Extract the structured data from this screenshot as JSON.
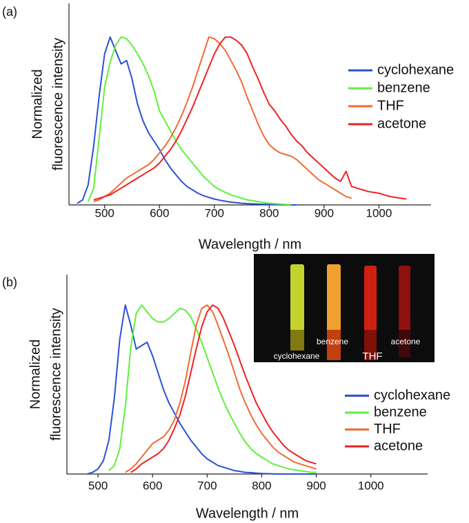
{
  "chart_data": [
    {
      "type": "line",
      "panel_label": "(a)",
      "x_label": "Wavelength / nm",
      "y_label": [
        "Normalized",
        "fluorescence intensity"
      ],
      "x": [
        450,
        460,
        470,
        480,
        490,
        500,
        510,
        520,
        530,
        540,
        550,
        560,
        570,
        580,
        590,
        600,
        610,
        620,
        630,
        640,
        650,
        660,
        670,
        680,
        690,
        700,
        710,
        720,
        730,
        740,
        750,
        760,
        770,
        780,
        790,
        800,
        810,
        820,
        830,
        840,
        850,
        860,
        870,
        880,
        890,
        900,
        910,
        920,
        930,
        940,
        950,
        960,
        970,
        980,
        990,
        1000,
        1010,
        1020,
        1030,
        1040,
        1050
      ],
      "series": [
        {
          "name": "cyclohexane",
          "color": "#2a4fd8",
          "values": [
            0.01,
            0.03,
            0.12,
            0.35,
            0.65,
            0.9,
            1.0,
            0.92,
            0.84,
            0.86,
            0.75,
            0.6,
            0.5,
            0.43,
            0.38,
            0.33,
            0.27,
            0.22,
            0.18,
            0.14,
            0.11,
            0.09,
            0.07,
            0.055,
            0.045,
            0.035,
            0.028,
            0.022,
            0.017,
            0.013,
            0.01,
            0.008,
            0.006,
            0.005,
            0.004,
            0.003,
            0.002,
            0.001,
            0.001,
            0,
            0,
            null,
            null,
            null,
            null,
            null,
            null,
            null,
            null,
            null,
            null,
            null,
            null,
            null,
            null,
            null,
            null,
            null,
            null,
            null,
            null
          ]
        },
        {
          "name": "benzene",
          "color": "#5ef03a",
          "values": [
            null,
            null,
            0.02,
            0.1,
            0.4,
            0.7,
            0.85,
            0.95,
            1.0,
            0.99,
            0.95,
            0.9,
            0.84,
            0.77,
            0.68,
            0.56,
            0.5,
            0.44,
            0.38,
            0.33,
            0.29,
            0.25,
            0.21,
            0.17,
            0.14,
            0.11,
            0.09,
            0.075,
            0.06,
            0.05,
            0.04,
            0.03,
            0.025,
            0.02,
            0.015,
            0.01,
            0.008,
            0.005,
            0.003,
            0.002,
            null,
            null,
            null,
            null,
            null,
            null,
            null,
            null,
            null,
            null,
            null,
            null,
            null,
            null,
            null,
            null,
            null,
            null,
            null,
            null,
            null
          ]
        },
        {
          "name": "THF",
          "color": "#f06a30",
          "values": [
            null,
            null,
            null,
            0.02,
            0.03,
            0.05,
            0.07,
            0.1,
            0.13,
            0.16,
            0.18,
            0.2,
            0.22,
            0.24,
            0.27,
            0.31,
            0.35,
            0.4,
            0.46,
            0.53,
            0.61,
            0.7,
            0.8,
            0.9,
            1.0,
            0.99,
            0.96,
            0.92,
            0.86,
            0.8,
            0.73,
            0.64,
            0.56,
            0.48,
            0.41,
            0.36,
            0.33,
            0.31,
            0.3,
            0.29,
            0.27,
            0.24,
            0.21,
            0.18,
            0.15,
            0.13,
            0.11,
            0.09,
            0.07,
            0.05,
            0.04,
            null,
            null,
            null,
            null,
            null,
            null,
            null,
            null,
            null,
            null
          ]
        },
        {
          "name": "acetone",
          "color": "#f02020",
          "values": [
            null,
            null,
            null,
            0.03,
            0.04,
            0.05,
            0.06,
            0.08,
            0.1,
            0.12,
            0.14,
            0.16,
            0.18,
            0.2,
            0.22,
            0.25,
            0.29,
            0.33,
            0.38,
            0.44,
            0.51,
            0.58,
            0.66,
            0.74,
            0.82,
            0.9,
            0.96,
            1.0,
            1.0,
            0.98,
            0.95,
            0.9,
            0.82,
            0.75,
            0.67,
            0.6,
            0.56,
            0.51,
            0.47,
            0.42,
            0.38,
            0.35,
            0.31,
            0.28,
            0.25,
            0.22,
            0.19,
            0.16,
            0.14,
            0.2,
            0.11,
            0.1,
            0.09,
            0.08,
            0.075,
            0.07,
            0.06,
            0.05,
            0.045,
            0.04,
            0.035
          ]
        }
      ],
      "xlim": [
        435,
        1095
      ],
      "ylim": [
        0,
        1.2
      ],
      "xticks": [
        500,
        600,
        700,
        800,
        900,
        1000
      ],
      "grid": false,
      "legend": "center right"
    },
    {
      "type": "line",
      "panel_label": "(b)",
      "x_label": "Wavelength / nm",
      "y_label": [
        "Normalized",
        "fluorescence intensity"
      ],
      "x": [
        480,
        490,
        500,
        510,
        520,
        530,
        540,
        550,
        560,
        570,
        580,
        590,
        600,
        610,
        620,
        630,
        640,
        650,
        660,
        670,
        680,
        690,
        700,
        710,
        720,
        730,
        740,
        750,
        760,
        770,
        780,
        790,
        800,
        810,
        820,
        830,
        840,
        850,
        860,
        870,
        880,
        890,
        900
      ],
      "series": [
        {
          "name": "cyclohexane",
          "color": "#2a4fd8",
          "values": [
            0,
            0.01,
            0.03,
            0.08,
            0.2,
            0.45,
            0.8,
            1.0,
            0.88,
            0.74,
            0.76,
            0.78,
            0.7,
            0.6,
            0.5,
            0.42,
            0.36,
            0.3,
            0.25,
            0.2,
            0.16,
            0.12,
            0.09,
            0.07,
            0.05,
            0.04,
            0.03,
            0.02,
            0.015,
            0.01,
            0.008,
            0.005,
            0.003,
            0.002,
            0.001,
            0,
            0,
            0,
            0,
            0,
            0,
            0,
            0
          ]
        },
        {
          "name": "benzene",
          "color": "#5ef03a",
          "values": [
            null,
            null,
            null,
            null,
            0.02,
            0.05,
            0.15,
            0.4,
            0.75,
            0.95,
            1.0,
            0.96,
            0.92,
            0.9,
            0.9,
            0.92,
            0.95,
            0.98,
            0.97,
            0.93,
            0.86,
            0.78,
            0.69,
            0.6,
            0.51,
            0.43,
            0.36,
            0.3,
            0.24,
            0.19,
            0.15,
            0.12,
            0.1,
            0.08,
            0.06,
            0.05,
            0.04,
            0.03,
            0.025,
            0.02,
            0.015,
            0.01,
            0.01
          ]
        },
        {
          "name": "THF",
          "color": "#f06a30",
          "values": [
            null,
            null,
            null,
            null,
            null,
            null,
            null,
            0.01,
            0.03,
            0.06,
            0.1,
            0.14,
            0.18,
            0.2,
            0.22,
            0.26,
            0.32,
            0.42,
            0.55,
            0.72,
            0.88,
            0.98,
            1.0,
            0.96,
            0.88,
            0.79,
            0.7,
            0.6,
            0.5,
            0.42,
            0.35,
            0.29,
            0.24,
            0.2,
            0.16,
            0.13,
            0.11,
            0.09,
            0.07,
            0.06,
            0.05,
            0.04,
            0.03
          ]
        },
        {
          "name": "acetone",
          "color": "#f02020",
          "values": [
            null,
            null,
            null,
            null,
            null,
            null,
            null,
            null,
            0.01,
            0.03,
            0.06,
            0.08,
            0.1,
            0.12,
            0.15,
            0.2,
            0.27,
            0.35,
            0.46,
            0.6,
            0.74,
            0.87,
            0.96,
            1.0,
            0.98,
            0.92,
            0.84,
            0.76,
            0.67,
            0.58,
            0.5,
            0.42,
            0.36,
            0.3,
            0.25,
            0.21,
            0.17,
            0.14,
            0.12,
            0.1,
            0.08,
            0.07,
            0.06
          ]
        }
      ],
      "xlim": [
        443,
        1104
      ],
      "ylim": [
        0,
        1.18
      ],
      "xticks": [
        500,
        600,
        700,
        800,
        900,
        1000
      ],
      "grid": false,
      "legend": "lower right",
      "inset_labels": [
        "cyclohexane",
        "benzene",
        "THF",
        "acetone"
      ]
    }
  ]
}
